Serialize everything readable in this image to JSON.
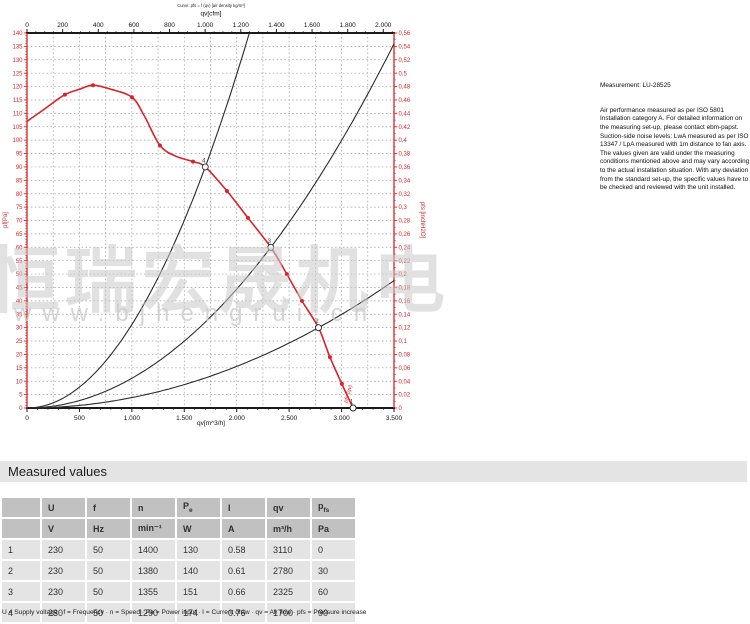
{
  "watermark": {
    "cjk": "恒瑞宏晟机电",
    "url": "www.bjhengrui.cn"
  },
  "chart_data": {
    "type": "line",
    "title_top_small": "Curve: pfs = f (qv) [air density kg/m³]",
    "axes": {
      "bottom": {
        "label": "qv[m^3/h]",
        "min": 0,
        "max": 3500,
        "major_tick": 500,
        "minor_tick": 100,
        "tick_labels": [
          "0",
          "500",
          "1.000",
          "1.500",
          "2.000",
          "2.500",
          "3.000",
          "3.500"
        ]
      },
      "top": {
        "label": "qv[cfm]",
        "min": 0,
        "max": 2060,
        "major_tick": 200,
        "minor_tick": 50,
        "tick_labels": [
          "0",
          "200",
          "400",
          "600",
          "800",
          "1.000",
          "1.200",
          "1.400",
          "1.600",
          "1.800",
          "2.000"
        ],
        "cfm_to_m3h": 1.699
      },
      "left": {
        "label": "pf[Pa]",
        "min": 0,
        "max": 140,
        "major_tick": 5,
        "minor_tick": 1,
        "color": "#d9232a"
      },
      "right": {
        "label": "pfs [inchH2O]",
        "min": 0,
        "max": 0.56,
        "major_tick": 0.02,
        "minor_tick": 0.01,
        "color": "#d9232a",
        "decimal_comma": true
      }
    },
    "grid": {
      "h_step_pa": 5,
      "v_step_m3h": 250,
      "style": "dashed",
      "color": "#9a9a9a"
    },
    "fan_curve": {
      "name": "pfs (qv)",
      "color": "#d9232a",
      "points": [
        [
          0,
          107
        ],
        [
          180,
          112
        ],
        [
          362,
          117
        ],
        [
          500,
          119
        ],
        [
          629,
          120.5
        ],
        [
          800,
          119
        ],
        [
          1001,
          116
        ],
        [
          1120,
          109
        ],
        [
          1268,
          98
        ],
        [
          1420,
          94
        ],
        [
          1583,
          92
        ],
        [
          1700,
          90
        ],
        [
          1907,
          81
        ],
        [
          2107,
          71
        ],
        [
          2325,
          60
        ],
        [
          2478,
          50
        ],
        [
          2622,
          40
        ],
        [
          2780,
          30
        ],
        [
          2889,
          19
        ],
        [
          3003,
          9
        ],
        [
          3110,
          0
        ]
      ]
    },
    "measurement_dots": [
      [
        362,
        117
      ],
      [
        629,
        120.5
      ],
      [
        1001,
        116
      ],
      [
        1268,
        98
      ],
      [
        1583,
        92
      ],
      [
        1907,
        81
      ],
      [
        2107,
        71
      ],
      [
        2478,
        50
      ],
      [
        2622,
        40
      ],
      [
        2889,
        19
      ],
      [
        3003,
        9
      ]
    ],
    "load_curves": [
      {
        "through_point": 4,
        "qv": 1700,
        "pfs": 90
      },
      {
        "through_point": 3,
        "qv": 2325,
        "pfs": 60
      },
      {
        "through_point": 2,
        "qv": 2780,
        "pfs": 30
      }
    ],
    "operating_points": [
      {
        "label": "1",
        "qv": 3110,
        "pfs": 0
      },
      {
        "label": "2",
        "qv": 2780,
        "pfs": 30
      },
      {
        "label": "3",
        "qv": 2325,
        "pfs": 60
      },
      {
        "label": "4",
        "qv": 1700,
        "pfs": 90
      }
    ],
    "curve_end_label": "pfs (qv)",
    "colors": {
      "curve_red": "#d9232a",
      "axis_black": "#1a1a1a",
      "load_curve": "#2b2b2b"
    }
  },
  "side_note": {
    "measurement": "Measurement: LU-28525",
    "body": "Air performance measured as per ISO 5801 Installation category A. For detailed information on the measuring set-up, please contact ebm-papst. Suction-side noise levels: LwA measured as per ISO 13347 / LpA measured with 1m distance to fan axis. The values given are valid under the measuring conditions mentioned above and may vary according to the actual installation situation. With any deviation from the standard set-up, the specific values have to be checked and reviewed with the unit installed."
  },
  "measured_values": {
    "title": "Measured values",
    "columns": {
      "u": "U",
      "f": "f",
      "n": "n",
      "pe_base": "P",
      "pe_sub": "e",
      "i": "I",
      "qv": "qv",
      "p_base": "p",
      "p_sub": "fs"
    },
    "units": {
      "u": "V",
      "f": "Hz",
      "n": "min⁻¹",
      "pe": "W",
      "i": "A",
      "qv": "m³/h",
      "p": "Pa"
    },
    "rows": [
      [
        "1",
        "230",
        "50",
        "1400",
        "130",
        "0.58",
        "3110",
        "0"
      ],
      [
        "2",
        "230",
        "50",
        "1380",
        "140",
        "0.61",
        "2780",
        "30"
      ],
      [
        "3",
        "230",
        "50",
        "1355",
        "151",
        "0.66",
        "2325",
        "60"
      ],
      [
        "4",
        "230",
        "50",
        "1290",
        "174",
        "0.76",
        "1700",
        "90"
      ]
    ],
    "legend": "U = Supply voltage · f = Frequency · n = Speed · Pe = Power input · I = Current draw · qv = Air flow · pfs = Pressure increase"
  }
}
